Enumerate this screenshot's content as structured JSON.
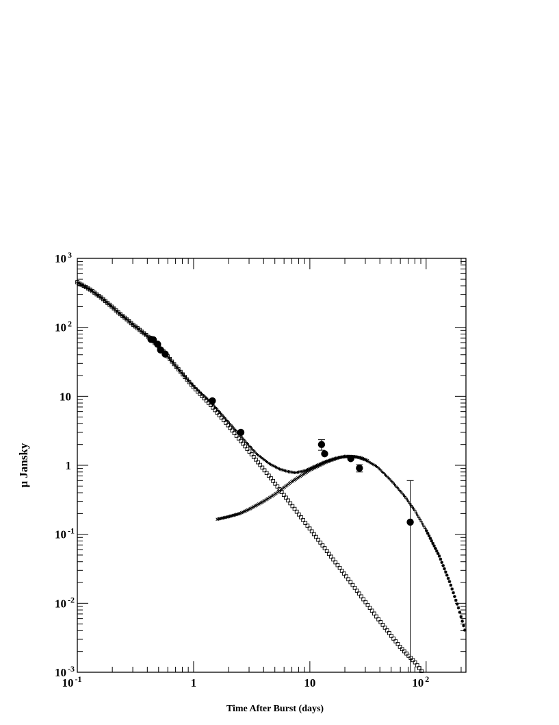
{
  "chart_data": {
    "type": "scatter",
    "xlabel": "Time After Burst (days)",
    "ylabel": "μ Jansky",
    "xscale": "log",
    "yscale": "log",
    "xlim": [
      0.1,
      220
    ],
    "ylim": [
      0.001,
      1000
    ],
    "grid": false,
    "legend": "none",
    "x_ticks": [
      {
        "value": 0.1,
        "base": "10",
        "exp": "-1"
      },
      {
        "value": 1,
        "base": "1",
        "exp": ""
      },
      {
        "value": 10,
        "base": "10",
        "exp": ""
      },
      {
        "value": 100,
        "base": "10",
        "exp": "2"
      }
    ],
    "y_ticks": [
      {
        "value": 1000,
        "base": "10",
        "exp": "3"
      },
      {
        "value": 100,
        "base": "10",
        "exp": "2"
      },
      {
        "value": 10,
        "base": "10",
        "exp": ""
      },
      {
        "value": 1,
        "base": "1",
        "exp": ""
      },
      {
        "value": 0.1,
        "base": "10",
        "exp": "-1"
      },
      {
        "value": 0.01,
        "base": "10",
        "exp": "-2"
      },
      {
        "value": 0.001,
        "base": "10",
        "exp": "-3"
      }
    ],
    "series": [
      {
        "role": "observations",
        "marker": "filled-circle",
        "points": [
          {
            "x": 0.43,
            "y": 67
          },
          {
            "x": 0.45,
            "y": 66
          },
          {
            "x": 0.49,
            "y": 57
          },
          {
            "x": 0.52,
            "y": 47
          },
          {
            "x": 0.57,
            "y": 41
          },
          {
            "x": 1.45,
            "y": 8.6
          },
          {
            "x": 2.55,
            "y": 3.0
          },
          {
            "x": 12.6,
            "y": 2.0,
            "err_lo": 1.65,
            "err_hi": 2.35
          },
          {
            "x": 13.4,
            "y": 1.47
          },
          {
            "x": 22.5,
            "y": 1.25
          },
          {
            "x": 26.7,
            "y": 0.91,
            "err_lo": 0.8,
            "err_hi": 1.02
          },
          {
            "x": 73,
            "y": 0.15,
            "err_lo": 0.001,
            "err_hi": 0.6
          }
        ]
      },
      {
        "role": "total-model",
        "marker": "plus",
        "points": [
          [
            0.1,
            450
          ],
          [
            0.13,
            350
          ],
          [
            0.17,
            250
          ],
          [
            0.22,
            170
          ],
          [
            0.3,
            110
          ],
          [
            0.4,
            75
          ],
          [
            0.55,
            45
          ],
          [
            0.75,
            24
          ],
          [
            1.0,
            14
          ],
          [
            1.4,
            8.3
          ],
          [
            2.0,
            4.2
          ],
          [
            2.8,
            2.2
          ],
          [
            3.5,
            1.45
          ],
          [
            4.5,
            1.05
          ],
          [
            5.5,
            0.88
          ],
          [
            6.5,
            0.81
          ],
          [
            7.5,
            0.78
          ],
          [
            9.0,
            0.83
          ],
          [
            11,
            0.97
          ],
          [
            13,
            1.1
          ],
          [
            16,
            1.25
          ],
          [
            20,
            1.35
          ],
          [
            25,
            1.33
          ],
          [
            30,
            1.2
          ],
          [
            38,
            0.95
          ],
          [
            50,
            0.6
          ],
          [
            65,
            0.36
          ],
          [
            80,
            0.22
          ],
          [
            100,
            0.115
          ],
          [
            130,
            0.048
          ],
          [
            160,
            0.02
          ],
          [
            190,
            0.0085
          ],
          [
            220,
            0.0036
          ]
        ]
      },
      {
        "role": "afterglow-component",
        "marker": "open-square",
        "points": [
          [
            0.1,
            450
          ],
          [
            0.13,
            350
          ],
          [
            0.17,
            250
          ],
          [
            0.22,
            170
          ],
          [
            0.3,
            110
          ],
          [
            0.4,
            75
          ],
          [
            0.55,
            45
          ],
          [
            0.75,
            24
          ],
          [
            1.0,
            13.5
          ],
          [
            1.4,
            7.5
          ],
          [
            2.0,
            3.7
          ],
          [
            3.0,
            1.6
          ],
          [
            5.0,
            0.55
          ],
          [
            10,
            0.12
          ],
          [
            20,
            0.026
          ],
          [
            40,
            0.0055
          ],
          [
            60,
            0.0023
          ],
          [
            80,
            0.0014
          ],
          [
            95,
            0.00095
          ]
        ]
      },
      {
        "role": "bump-component",
        "marker": "cross",
        "points": [
          [
            1.6,
            0.165
          ],
          [
            2.0,
            0.18
          ],
          [
            2.5,
            0.2
          ],
          [
            3.0,
            0.23
          ],
          [
            4.0,
            0.3
          ],
          [
            5.0,
            0.38
          ],
          [
            7.0,
            0.58
          ],
          [
            10,
            0.85
          ],
          [
            14,
            1.12
          ],
          [
            18,
            1.3
          ],
          [
            22,
            1.35
          ],
          [
            27,
            1.3
          ],
          [
            32,
            1.15
          ]
        ]
      }
    ]
  }
}
